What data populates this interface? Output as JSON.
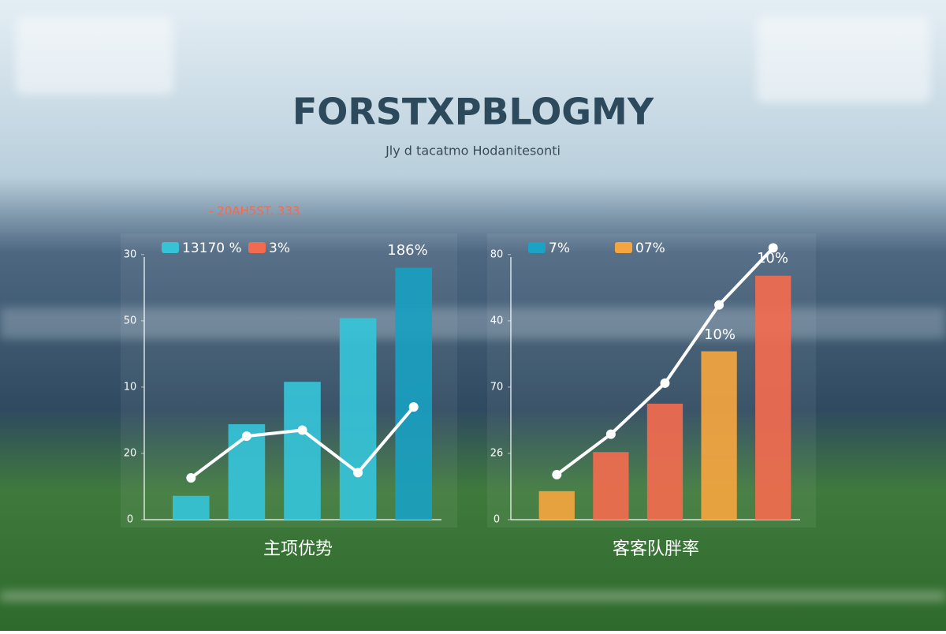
{
  "header": {
    "title": "FORSTXPBLOGMY",
    "subtitle": "Jly d tacatmo Hodanitesonti",
    "annotation": "- 20AH5ST. 333"
  },
  "chart_data": [
    {
      "type": "bar-line",
      "label": "主项优势",
      "categories": [
        null,
        null,
        null,
        null,
        null
      ],
      "ylim": [
        0,
        4.2
      ],
      "yticks": [
        {
          "value": 0,
          "label": "0"
        },
        {
          "value": 1,
          "label": "20"
        },
        {
          "value": 2,
          "label": "10"
        },
        {
          "value": 3,
          "label": "50"
        },
        {
          "value": 4,
          "label": "30"
        }
      ],
      "series": [
        {
          "name": "13170 %",
          "color": "#36c3d8",
          "kind": "bar",
          "colors": [
            "#36c3d8",
            "#36c3d8",
            "#36c3d8",
            "#36c3d8",
            "#1a9fc0"
          ],
          "values": [
            0.36,
            1.44,
            2.08,
            3.04,
            3.8
          ]
        },
        {
          "name": "3%",
          "color": "#f26b4f",
          "kind": "line",
          "line_color": "#ffffff",
          "values": [
            0.63,
            1.26,
            1.35,
            0.71,
            1.7
          ]
        }
      ],
      "annotations": [
        "186%"
      ]
    },
    {
      "type": "bar-line",
      "label": "客客队胖率",
      "categories": [
        null,
        null,
        null,
        null,
        null
      ],
      "ylim": [
        0,
        4.2
      ],
      "yticks": [
        {
          "value": 0,
          "label": "0"
        },
        {
          "value": 1,
          "label": "26"
        },
        {
          "value": 2,
          "label": "70"
        },
        {
          "value": 3,
          "label": "40"
        },
        {
          "value": 4,
          "label": "80"
        }
      ],
      "series": [
        {
          "name": "7%",
          "color": "#1aa3c4",
          "kind": "bar",
          "colors": [
            "#f5a540",
            "#f26b4f",
            "#f26b4f",
            "#f5a540",
            "#f26b4f"
          ],
          "values": [
            0.43,
            1.02,
            1.75,
            2.54,
            3.68
          ]
        },
        {
          "name": "07%",
          "color": "#f5a540",
          "kind": "line",
          "line_color": "#ffffff",
          "values": [
            0.68,
            1.29,
            2.06,
            3.24,
            4.1
          ]
        }
      ],
      "annotations": [
        "10%",
        "10%"
      ]
    }
  ]
}
